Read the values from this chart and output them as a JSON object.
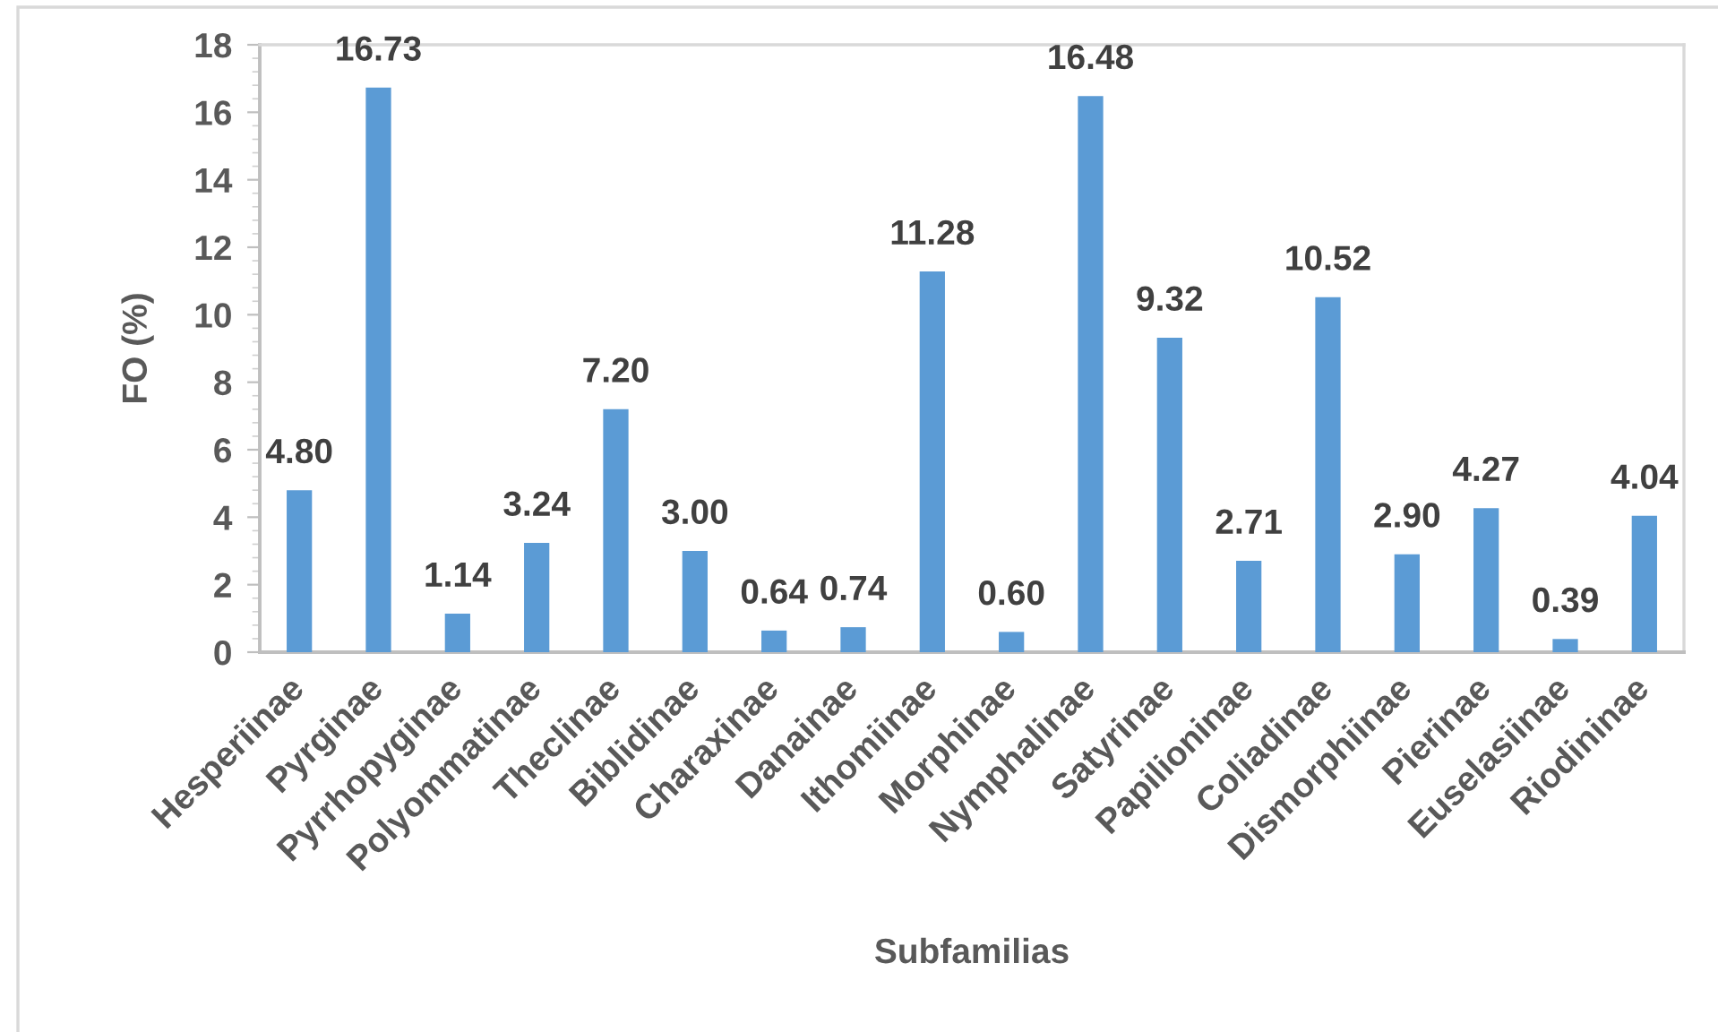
{
  "chart_data": {
    "type": "bar",
    "xlabel": "Subfamilias",
    "ylabel": "FO (%)",
    "categories": [
      "Hesperiinae",
      "Pyrginae",
      "Pyrrhopyginae",
      "Polyommatinae",
      "Theclinae",
      "Biblidinae",
      "Charaxinae",
      "Danainae",
      "Ithomiinae",
      "Morphinae",
      "Nymphalinae",
      "Satyrinae",
      "Papilioninae",
      "Coliadinae",
      "Dismorphiinae",
      "Pierinae",
      "Euselasiinae",
      "Riodininae"
    ],
    "values": [
      4.8,
      16.73,
      1.14,
      3.24,
      7.2,
      3.0,
      0.64,
      0.74,
      11.28,
      0.6,
      16.48,
      9.32,
      2.71,
      10.52,
      2.9,
      4.27,
      0.39,
      4.04
    ],
    "value_labels": [
      "4.80",
      "16.73",
      "1.14",
      "3.24",
      "7.20",
      "3.00",
      "0.64",
      "0.74",
      "11.28",
      "0.60",
      "16.48",
      "9.32",
      "2.71",
      "10.52",
      "2.90",
      "4.27",
      "0.39",
      "4.04"
    ],
    "color": "#5b9bd5",
    "ylim": [
      0,
      18
    ],
    "yticks": [
      0,
      2,
      4,
      6,
      8,
      10,
      12,
      14,
      16,
      18
    ],
    "grid": false
  }
}
